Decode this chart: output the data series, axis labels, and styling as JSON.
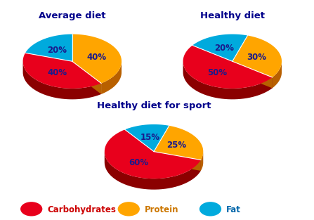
{
  "charts": [
    {
      "title": "Average diet",
      "values": [
        40,
        40,
        20
      ],
      "labels": [
        "40%",
        "40%",
        "20%"
      ],
      "start_angle": 162
    },
    {
      "title": "Healthy diet",
      "values": [
        50,
        30,
        20
      ],
      "labels": [
        "50%",
        "30%",
        "20%"
      ],
      "start_angle": 144
    },
    {
      "title": "Healthy diet for sport",
      "values": [
        60,
        25,
        15
      ],
      "labels": [
        "60%",
        "25%",
        "15%"
      ],
      "start_angle": 126
    }
  ],
  "colors_top": [
    "#E8001C",
    "#FFA500",
    "#00AADD"
  ],
  "colors_side": [
    "#8B0000",
    "#B86000",
    "#00457A"
  ],
  "title_color": "#00008B",
  "label_color": "#1a1a8c",
  "legend_labels": [
    "Carbohydrates",
    "Protein",
    "Fat"
  ],
  "legend_colors_text": [
    "#CC0000",
    "#CC7700",
    "#0066AA"
  ],
  "legend_colors_marker": [
    "#E8001C",
    "#FFA500",
    "#00AADD"
  ],
  "background_color": "#ffffff",
  "title_fontsize": 9.5,
  "label_fontsize": 8.5,
  "legend_fontsize": 8.5
}
